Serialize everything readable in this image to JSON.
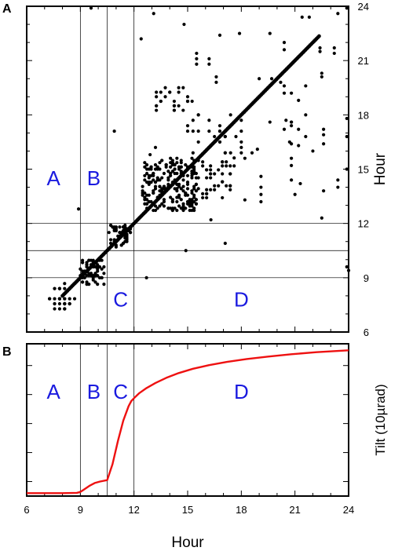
{
  "figure": {
    "panel_a_label": "A",
    "panel_b_label": "B"
  },
  "chart_data": [
    {
      "panel": "A",
      "type": "scatter",
      "x_axis": {
        "range": [
          6,
          24
        ],
        "ticks": [
          6,
          9,
          12,
          15,
          18,
          21,
          24
        ],
        "tick_labels_shown": false
      },
      "y_axis": {
        "range": [
          6,
          24
        ],
        "ticks": [
          6,
          9,
          12,
          15,
          18,
          21,
          24
        ],
        "tick_labels": [
          "6",
          "9",
          "12",
          "15",
          "18",
          "21",
          "24"
        ],
        "side": "right"
      },
      "ylabel": "Hour",
      "vertical_lines_x": [
        9,
        10.5,
        12
      ],
      "horizontal_lines_y": [
        9,
        10.5,
        12
      ],
      "region_labels": [
        {
          "text": "A",
          "x": 7.5,
          "y": 14.5,
          "color": "#1a1adf"
        },
        {
          "text": "B",
          "x": 9.75,
          "y": 14.5,
          "color": "#1a1adf"
        },
        {
          "text": "C",
          "x": 11.25,
          "y": 7.8,
          "color": "#1a1adf"
        },
        {
          "text": "D",
          "x": 18,
          "y": 7.8,
          "color": "#1a1adf"
        }
      ],
      "diagonal": {
        "x": [
          8,
          22.4
        ],
        "y": [
          8,
          22.4
        ]
      },
      "clusters": [
        {
          "xrange": [
            7.2,
            8.6
          ],
          "yrange": [
            7.2,
            8.6
          ],
          "count": 40,
          "grid": 0.28
        },
        {
          "xrange": [
            9.0,
            10.3
          ],
          "yrange": [
            8.6,
            10.0
          ],
          "count": 70,
          "grid": 0.12
        },
        {
          "xrange": [
            10.6,
            11.8
          ],
          "yrange": [
            10.7,
            11.9
          ],
          "count": 55,
          "grid": 0.1
        },
        {
          "xrange": [
            12.5,
            15.6
          ],
          "yrange": [
            12.7,
            15.6
          ],
          "count": 220,
          "grid": 0.12
        },
        {
          "xrange": [
            13.2,
            15.2
          ],
          "yrange": [
            18.3,
            19.6
          ],
          "count": 28,
          "grid": 0.25
        },
        {
          "xrange": [
            15.8,
            17.6
          ],
          "yrange": [
            13.4,
            15.6
          ],
          "count": 40,
          "grid": 0.22
        },
        {
          "xrange": [
            15.0,
            18.2
          ],
          "yrange": [
            15.8,
            18.0
          ],
          "count": 35,
          "grid": 0.3
        },
        {
          "xrange": [
            19.5,
            22.0
          ],
          "yrange": [
            13.8,
            20.5
          ],
          "count": 18,
          "grid": 0.4
        }
      ],
      "points": [
        [
          9.6,
          23.9
        ],
        [
          12.4,
          22.2
        ],
        [
          13.1,
          23.6
        ],
        [
          14.8,
          23.0
        ],
        [
          16.8,
          22.4
        ],
        [
          17.9,
          22.5
        ],
        [
          19.6,
          22.5
        ],
        [
          21.4,
          23.4
        ],
        [
          21.8,
          23.4
        ],
        [
          23.4,
          23.6
        ],
        [
          23.9,
          23.9
        ],
        [
          15.5,
          21.4
        ],
        [
          15.5,
          21.1
        ],
        [
          15.5,
          20.8
        ],
        [
          16.2,
          21.1
        ],
        [
          16.2,
          20.8
        ],
        [
          20.4,
          22.0
        ],
        [
          20.4,
          21.6
        ],
        [
          22.4,
          21.7
        ],
        [
          22.4,
          21.5
        ],
        [
          23.2,
          21.7
        ],
        [
          23.2,
          21.4
        ],
        [
          22.5,
          20.3
        ],
        [
          22.5,
          20.1
        ],
        [
          19.0,
          20.0
        ],
        [
          19.7,
          20.0
        ],
        [
          20.2,
          19.8
        ],
        [
          16.6,
          20.1
        ],
        [
          16.6,
          19.8
        ],
        [
          20.5,
          17.7
        ],
        [
          20.8,
          17.4
        ],
        [
          22.6,
          17.2
        ],
        [
          22.6,
          16.9
        ],
        [
          22.6,
          16.4
        ],
        [
          23.9,
          17.8
        ],
        [
          23.9,
          16.8
        ],
        [
          23.9,
          15.0
        ],
        [
          23.4,
          14.4
        ],
        [
          23.4,
          14.0
        ],
        [
          22.6,
          13.8
        ],
        [
          21.3,
          14.2
        ],
        [
          21.0,
          13.6
        ],
        [
          22.5,
          12.3
        ],
        [
          17.1,
          10.9
        ],
        [
          10.9,
          17.1
        ],
        [
          8.9,
          12.8
        ],
        [
          12.7,
          9.0
        ],
        [
          23.9,
          9.6
        ],
        [
          24.0,
          9.4
        ],
        [
          14.9,
          10.5
        ],
        [
          16.3,
          12.2
        ],
        [
          19.1,
          13.2
        ],
        [
          19.1,
          13.6
        ],
        [
          19.1,
          14.0
        ],
        [
          19.1,
          14.6
        ],
        [
          18.2,
          13.3
        ],
        [
          18.2,
          15.6
        ],
        [
          18.6,
          15.9
        ],
        [
          18.9,
          16.1
        ],
        [
          20.7,
          16.5
        ],
        [
          21.2,
          16.3
        ],
        [
          12.9,
          15.8
        ],
        [
          13.2,
          16.2
        ]
      ]
    },
    {
      "panel": "B",
      "type": "line",
      "x_axis": {
        "range": [
          6,
          24
        ],
        "ticks": [
          6,
          9,
          12,
          15,
          18,
          21,
          24
        ],
        "tick_labels": [
          "6",
          "9",
          "12",
          "15",
          "18",
          "21",
          "24"
        ]
      },
      "xlabel": "Hour",
      "ylabel": "Tilt (10µrad)",
      "y_axis": {
        "range": [
          0,
          1.05
        ],
        "ticks": [
          0.1,
          0.3,
          0.5,
          0.7,
          0.9
        ],
        "tick_labels_shown": false
      },
      "vertical_lines_x": [
        9,
        10.5,
        12
      ],
      "region_labels": [
        {
          "text": "A",
          "x": 7.5,
          "y": 0.72,
          "color": "#1a1adf"
        },
        {
          "text": "B",
          "x": 9.75,
          "y": 0.72,
          "color": "#1a1adf"
        },
        {
          "text": "C",
          "x": 11.25,
          "y": 0.72,
          "color": "#1a1adf"
        },
        {
          "text": "D",
          "x": 18,
          "y": 0.72,
          "color": "#1a1adf"
        }
      ],
      "series": [
        {
          "color": "#ee1111",
          "x": [
            6.0,
            7.0,
            8.0,
            8.8,
            9.0,
            9.2,
            9.5,
            9.8,
            10.1,
            10.5,
            10.8,
            11.1,
            11.4,
            11.7,
            11.85,
            12.0,
            12.3,
            12.7,
            13.2,
            13.8,
            14.5,
            15.3,
            16.2,
            17.2,
            18.3,
            19.5,
            20.8,
            22.2,
            24.0
          ],
          "y": [
            0.02,
            0.02,
            0.02,
            0.022,
            0.028,
            0.045,
            0.07,
            0.09,
            0.1,
            0.11,
            0.22,
            0.38,
            0.52,
            0.62,
            0.655,
            0.675,
            0.71,
            0.745,
            0.78,
            0.815,
            0.848,
            0.878,
            0.903,
            0.925,
            0.945,
            0.962,
            0.978,
            0.992,
            1.005
          ]
        }
      ]
    }
  ]
}
